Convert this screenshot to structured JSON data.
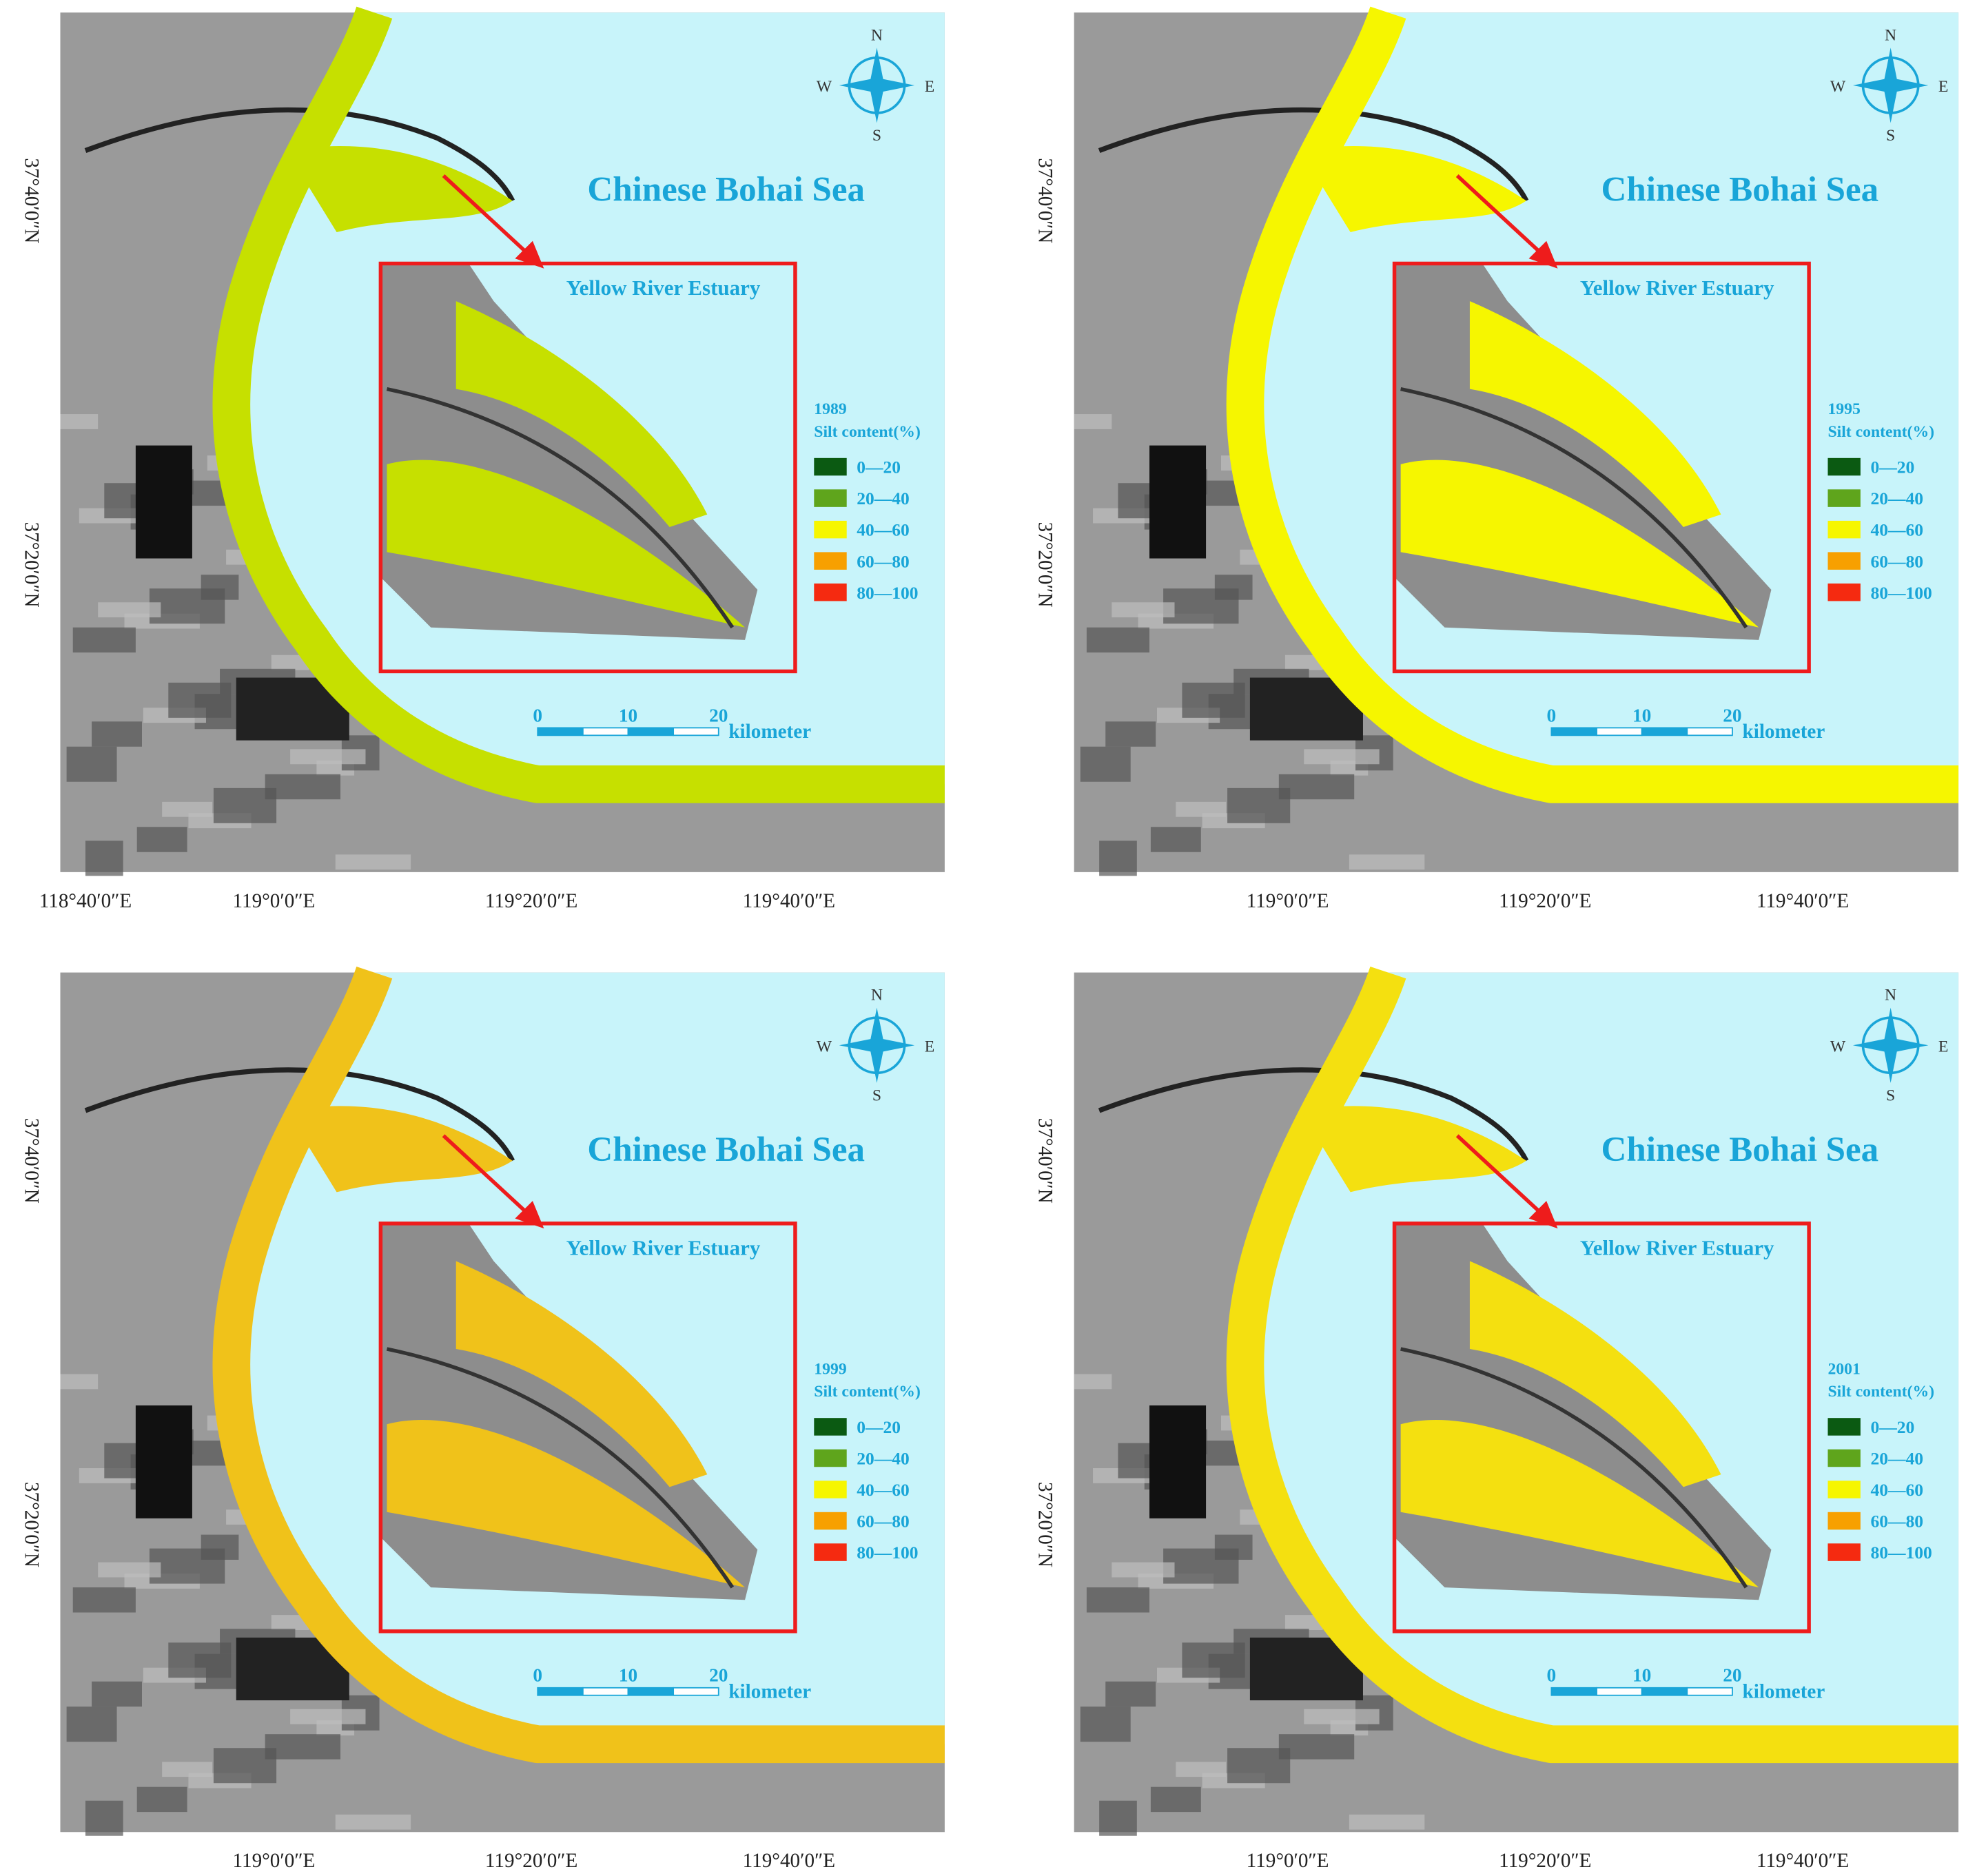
{
  "title": "Chinese Bohai Sea",
  "inset_label": "Yellow River Estuary",
  "legend_title": "Silt content(%)",
  "legend_items": [
    {
      "label": "0—20",
      "color": "#0b5a12"
    },
    {
      "label": "20—40",
      "color": "#5fa51c"
    },
    {
      "label": "40—60",
      "color": "#f6f600"
    },
    {
      "label": "60—80",
      "color": "#f7a000"
    },
    {
      "label": "80—100",
      "color": "#f52a10"
    }
  ],
  "scale_labels": [
    "0",
    "10",
    "20"
  ],
  "scale_unit": "kilometer",
  "compass": {
    "n": "N",
    "e": "E",
    "s": "S",
    "w": "W"
  },
  "panels": [
    {
      "year": "1989",
      "band_color": "#c6e000",
      "lat_labels": [
        "37°40′0″N",
        "37°20′0″N"
      ],
      "lon_labels": [
        "118°40′0″E",
        "119°0′0″E",
        "119°20′0″E",
        "119°40′0″E"
      ]
    },
    {
      "year": "1995",
      "band_color": "#f6f600",
      "lat_labels": [
        "37°40′0″N",
        "37°20′0″N"
      ],
      "lon_labels": [
        "119°0′0″E",
        "119°20′0″E",
        "119°40′0″E"
      ]
    },
    {
      "year": "1999",
      "band_color": "#f0c21a",
      "lat_labels": [
        "37°40′0″N",
        "37°20′0″N"
      ],
      "lon_labels": [
        "119°0′0″E",
        "119°20′0″E",
        "119°40′0″E"
      ]
    },
    {
      "year": "2001",
      "band_color": "#f4e010",
      "lat_labels": [
        "37°40′0″N",
        "37°20′0″N"
      ],
      "lon_labels": [
        "119°0′0″E",
        "119°20′0″E",
        "119°40′0″E"
      ]
    }
  ]
}
